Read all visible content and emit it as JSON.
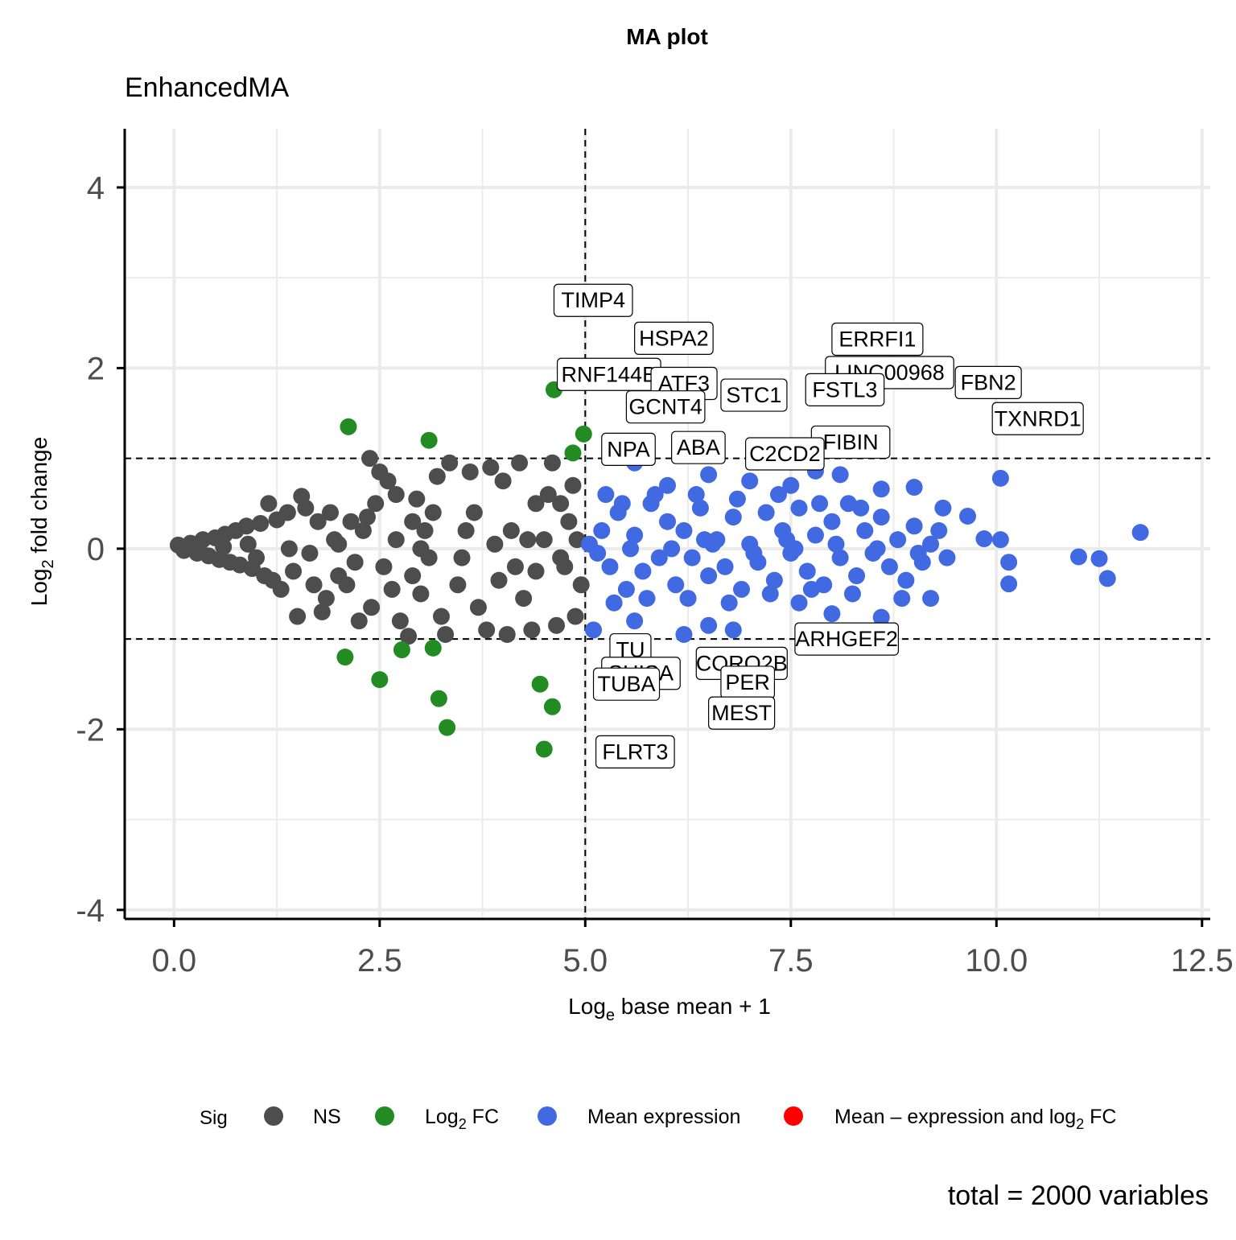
{
  "chart_data": {
    "type": "scatter",
    "title": "MA plot",
    "subtitle": "EnhancedMA",
    "caption": "total = 2000 variables",
    "xlabel": {
      "main": "Log",
      "sub": "e",
      "rest": " base mean + 1"
    },
    "ylabel": {
      "main": "Log",
      "sub": "2",
      "rest": " fold change"
    },
    "xlim": [
      -0.6,
      12.6
    ],
    "ylim": [
      -4.1,
      4.65
    ],
    "xticks": [
      0,
      2.5,
      5,
      7.5,
      10,
      12.5
    ],
    "xtick_labels": [
      "0.0",
      "2.5",
      "5.0",
      "7.5",
      "10.0",
      "12.5"
    ],
    "yticks": [
      -4,
      -2,
      0,
      2,
      4
    ],
    "ytick_labels": [
      "-4",
      "-2",
      "0",
      "2",
      "4"
    ],
    "grid": true,
    "vline_x": 5,
    "hlines_y": [
      -1,
      1
    ],
    "colors": {
      "NS": "#4d4d4d",
      "Log2FC": "#228b22",
      "MeanExpr": "#4169e1",
      "Both": "#ff0000"
    },
    "legend": {
      "title": "Sig",
      "position": "bottom",
      "items": [
        {
          "key": "NS",
          "main": "NS",
          "sub": "",
          "rest": "",
          "color": "#4d4d4d"
        },
        {
          "key": "Log2FC",
          "main": "Log",
          "sub": "2",
          "rest": " FC",
          "color": "#228b22"
        },
        {
          "key": "MeanExpr",
          "main": "Mean expression",
          "sub": "",
          "rest": "",
          "color": "#4169e1"
        },
        {
          "key": "Both",
          "main": "Mean – expression and log",
          "sub": "2",
          "rest": " FC",
          "color": "#ff0000"
        }
      ]
    },
    "series": [
      {
        "name": "NS",
        "color": "#4d4d4d",
        "points": [
          [
            0.05,
            0.04
          ],
          [
            0.12,
            -0.02
          ],
          [
            0.2,
            0.06
          ],
          [
            0.28,
            -0.05
          ],
          [
            0.35,
            0.1
          ],
          [
            0.42,
            -0.08
          ],
          [
            0.5,
            0.12
          ],
          [
            0.55,
            -0.12
          ],
          [
            0.62,
            0.16
          ],
          [
            0.68,
            -0.15
          ],
          [
            0.75,
            0.2
          ],
          [
            0.8,
            -0.18
          ],
          [
            0.88,
            0.25
          ],
          [
            0.95,
            -0.22
          ],
          [
            1.05,
            0.28
          ],
          [
            1.1,
            -0.3
          ],
          [
            1.15,
            0.5
          ],
          [
            1.2,
            -0.35
          ],
          [
            1.25,
            0.32
          ],
          [
            1.3,
            -0.45
          ],
          [
            1.38,
            0.4
          ],
          [
            1.45,
            -0.25
          ],
          [
            1.5,
            -0.75
          ],
          [
            1.55,
            0.58
          ],
          [
            1.6,
            0.45
          ],
          [
            1.7,
            -0.4
          ],
          [
            1.75,
            0.3
          ],
          [
            1.8,
            -0.7
          ],
          [
            1.85,
            -0.55
          ],
          [
            1.9,
            0.4
          ],
          [
            1.95,
            0.1
          ],
          [
            2.0,
            -0.3
          ],
          [
            2.1,
            -0.4
          ],
          [
            2.15,
            0.3
          ],
          [
            2.25,
            -0.8
          ],
          [
            2.3,
            0.2
          ],
          [
            2.38,
            1.0
          ],
          [
            2.4,
            -0.65
          ],
          [
            2.45,
            0.5
          ],
          [
            2.5,
            0.85
          ],
          [
            2.55,
            -0.2
          ],
          [
            2.6,
            0.75
          ],
          [
            2.65,
            -0.45
          ],
          [
            2.7,
            0.6
          ],
          [
            2.75,
            -0.8
          ],
          [
            2.85,
            -0.97
          ],
          [
            2.9,
            0.3
          ],
          [
            2.95,
            0.55
          ],
          [
            3.0,
            -0.5
          ],
          [
            3.05,
            0.2
          ],
          [
            3.1,
            -0.1
          ],
          [
            3.2,
            0.8
          ],
          [
            3.25,
            -0.75
          ],
          [
            3.3,
            -0.95
          ],
          [
            3.35,
            0.95
          ],
          [
            3.45,
            -0.4
          ],
          [
            3.55,
            0.2
          ],
          [
            3.6,
            0.85
          ],
          [
            3.7,
            -0.65
          ],
          [
            3.8,
            -0.9
          ],
          [
            3.85,
            0.9
          ],
          [
            3.95,
            -0.35
          ],
          [
            4.0,
            0.75
          ],
          [
            4.05,
            -0.95
          ],
          [
            4.1,
            0.2
          ],
          [
            4.2,
            0.95
          ],
          [
            4.25,
            -0.55
          ],
          [
            4.35,
            -0.9
          ],
          [
            4.4,
            0.5
          ],
          [
            4.5,
            0.1
          ],
          [
            4.55,
            0.6
          ],
          [
            4.6,
            0.95
          ],
          [
            4.65,
            -0.85
          ],
          [
            4.7,
            0.5
          ],
          [
            4.75,
            -0.2
          ],
          [
            4.8,
            0.3
          ],
          [
            4.85,
            0.7
          ],
          [
            4.88,
            -0.75
          ],
          [
            4.9,
            0.1
          ],
          [
            4.95,
            -0.4
          ],
          [
            3.0,
            0.0
          ],
          [
            2.0,
            0.05
          ],
          [
            1.4,
            0.0
          ],
          [
            0.9,
            0.05
          ],
          [
            2.7,
            0.1
          ],
          [
            3.5,
            -0.1
          ],
          [
            4.3,
            0.1
          ],
          [
            1.65,
            -0.05
          ],
          [
            2.2,
            -0.15
          ],
          [
            3.9,
            0.05
          ],
          [
            4.4,
            -0.25
          ],
          [
            2.9,
            -0.3
          ],
          [
            1.0,
            -0.1
          ],
          [
            0.6,
            0.02
          ],
          [
            3.65,
            0.4
          ],
          [
            4.15,
            -0.2
          ],
          [
            2.35,
            0.35
          ],
          [
            3.15,
            0.4
          ],
          [
            0.3,
            0.0
          ],
          [
            4.7,
            -0.1
          ]
        ]
      },
      {
        "name": "Log2FC",
        "color": "#228b22",
        "points": [
          [
            2.12,
            1.35
          ],
          [
            3.1,
            1.2
          ],
          [
            4.62,
            1.76
          ],
          [
            4.98,
            1.27
          ],
          [
            4.85,
            1.06
          ],
          [
            2.08,
            -1.2
          ],
          [
            2.5,
            -1.45
          ],
          [
            2.77,
            -1.12
          ],
          [
            3.15,
            -1.1
          ],
          [
            3.22,
            -1.66
          ],
          [
            3.32,
            -1.98
          ],
          [
            4.45,
            -1.5
          ],
          [
            4.6,
            -1.75
          ],
          [
            4.5,
            -2.22
          ]
        ]
      },
      {
        "name": "MeanExpr",
        "color": "#4169e1",
        "points": [
          [
            5.6,
            0.95
          ],
          [
            6.0,
            0.7
          ],
          [
            6.5,
            0.82
          ],
          [
            7.0,
            0.75
          ],
          [
            7.5,
            0.7
          ],
          [
            7.8,
            0.86
          ],
          [
            8.1,
            0.82
          ],
          [
            8.6,
            0.66
          ],
          [
            9.0,
            0.68
          ],
          [
            9.35,
            0.45
          ],
          [
            9.65,
            0.36
          ],
          [
            10.05,
            0.78
          ],
          [
            11.75,
            0.18
          ],
          [
            9.85,
            0.11
          ],
          [
            10.05,
            0.1
          ],
          [
            10.15,
            -0.15
          ],
          [
            10.15,
            -0.39
          ],
          [
            11.0,
            -0.09
          ],
          [
            11.25,
            -0.11
          ],
          [
            11.35,
            -0.33
          ],
          [
            9.2,
            -0.55
          ],
          [
            8.85,
            -0.55
          ],
          [
            8.6,
            -0.76
          ],
          [
            8.0,
            -0.72
          ],
          [
            7.6,
            -0.6
          ],
          [
            6.5,
            -0.85
          ],
          [
            5.6,
            -0.8
          ],
          [
            5.1,
            -0.9
          ],
          [
            6.2,
            -0.95
          ],
          [
            6.8,
            -0.9
          ],
          [
            5.2,
            0.2
          ],
          [
            5.3,
            -0.2
          ],
          [
            5.4,
            0.4
          ],
          [
            5.5,
            -0.45
          ],
          [
            5.6,
            0.15
          ],
          [
            5.7,
            -0.25
          ],
          [
            5.8,
            0.5
          ],
          [
            5.9,
            -0.1
          ],
          [
            6.0,
            0.3
          ],
          [
            6.1,
            -0.4
          ],
          [
            6.2,
            0.2
          ],
          [
            6.3,
            -0.1
          ],
          [
            6.4,
            0.45
          ],
          [
            6.5,
            -0.3
          ],
          [
            6.6,
            0.1
          ],
          [
            6.7,
            -0.2
          ],
          [
            6.8,
            0.35
          ],
          [
            6.9,
            -0.45
          ],
          [
            7.0,
            0.05
          ],
          [
            7.1,
            -0.15
          ],
          [
            7.2,
            0.4
          ],
          [
            7.3,
            -0.35
          ],
          [
            7.4,
            0.2
          ],
          [
            7.5,
            -0.05
          ],
          [
            7.6,
            0.45
          ],
          [
            7.7,
            -0.25
          ],
          [
            7.8,
            0.15
          ],
          [
            7.9,
            -0.4
          ],
          [
            8.0,
            0.3
          ],
          [
            8.1,
            -0.1
          ],
          [
            8.2,
            0.5
          ],
          [
            8.3,
            -0.3
          ],
          [
            8.4,
            0.2
          ],
          [
            8.5,
            -0.05
          ],
          [
            8.6,
            0.35
          ],
          [
            8.7,
            -0.2
          ],
          [
            8.8,
            0.1
          ],
          [
            8.9,
            -0.35
          ],
          [
            9.0,
            0.25
          ],
          [
            9.1,
            -0.15
          ],
          [
            9.2,
            0.05
          ],
          [
            9.3,
            0.2
          ],
          [
            9.4,
            -0.1
          ],
          [
            5.25,
            0.6
          ],
          [
            5.45,
            0.5
          ],
          [
            5.85,
            0.6
          ],
          [
            6.35,
            0.6
          ],
          [
            6.85,
            0.55
          ],
          [
            7.35,
            0.6
          ],
          [
            7.85,
            0.5
          ],
          [
            8.35,
            0.45
          ],
          [
            5.35,
            -0.6
          ],
          [
            5.75,
            -0.55
          ],
          [
            6.25,
            -0.55
          ],
          [
            6.75,
            -0.6
          ],
          [
            7.25,
            -0.5
          ],
          [
            7.75,
            -0.45
          ],
          [
            8.25,
            -0.5
          ],
          [
            5.05,
            0.05
          ],
          [
            5.15,
            -0.05
          ],
          [
            6.05,
            0.0
          ],
          [
            6.55,
            0.05
          ],
          [
            7.05,
            -0.05
          ],
          [
            7.55,
            0.0
          ],
          [
            8.05,
            0.05
          ],
          [
            8.55,
            0.0
          ],
          [
            9.05,
            -0.05
          ],
          [
            5.55,
            0.0
          ],
          [
            6.45,
            0.1
          ],
          [
            7.45,
            0.1
          ]
        ]
      },
      {
        "name": "Both",
        "color": "#ff0000",
        "points": []
      }
    ],
    "annotations": [
      {
        "text": "TIMP4",
        "x": 4.62,
        "y": 2.75
      },
      {
        "text": "HSPA2",
        "x": 5.6,
        "y": 2.33
      },
      {
        "text": "ERRFI1",
        "x": 8.0,
        "y": 2.32
      },
      {
        "text": "RNF144B",
        "x": 4.66,
        "y": 1.93
      },
      {
        "text": "LINC00968",
        "x": 7.92,
        "y": 1.95
      },
      {
        "text": "ATF3",
        "x": 5.8,
        "y": 1.83
      },
      {
        "text": "FSTL3",
        "x": 7.68,
        "y": 1.76
      },
      {
        "text": "STC1",
        "x": 6.65,
        "y": 1.7
      },
      {
        "text": "FBN2",
        "x": 9.5,
        "y": 1.84
      },
      {
        "text": "GCNT4",
        "x": 5.5,
        "y": 1.57
      },
      {
        "text": "TXNRD1",
        "x": 9.95,
        "y": 1.44
      },
      {
        "text": "FIBIN",
        "x": 7.75,
        "y": 1.18
      },
      {
        "text": "NPA",
        "x": 5.2,
        "y": 1.1
      },
      {
        "text": "ABA",
        "x": 6.05,
        "y": 1.12
      },
      {
        "text": "C2CD2",
        "x": 6.95,
        "y": 1.05
      },
      {
        "text": "ARHGEF2",
        "x": 7.55,
        "y": -1.0
      },
      {
        "text": "TU",
        "x": 5.3,
        "y": -1.12
      },
      {
        "text": "CORO2B",
        "x": 6.35,
        "y": -1.27
      },
      {
        "text": "SHISA",
        "x": 5.2,
        "y": -1.38
      },
      {
        "text": "TUBA",
        "x": 5.1,
        "y": -1.5
      },
      {
        "text": "PER",
        "x": 6.65,
        "y": -1.48
      },
      {
        "text": "MEST",
        "x": 6.5,
        "y": -1.82
      },
      {
        "text": "FLRT3",
        "x": 5.13,
        "y": -2.25
      }
    ]
  }
}
